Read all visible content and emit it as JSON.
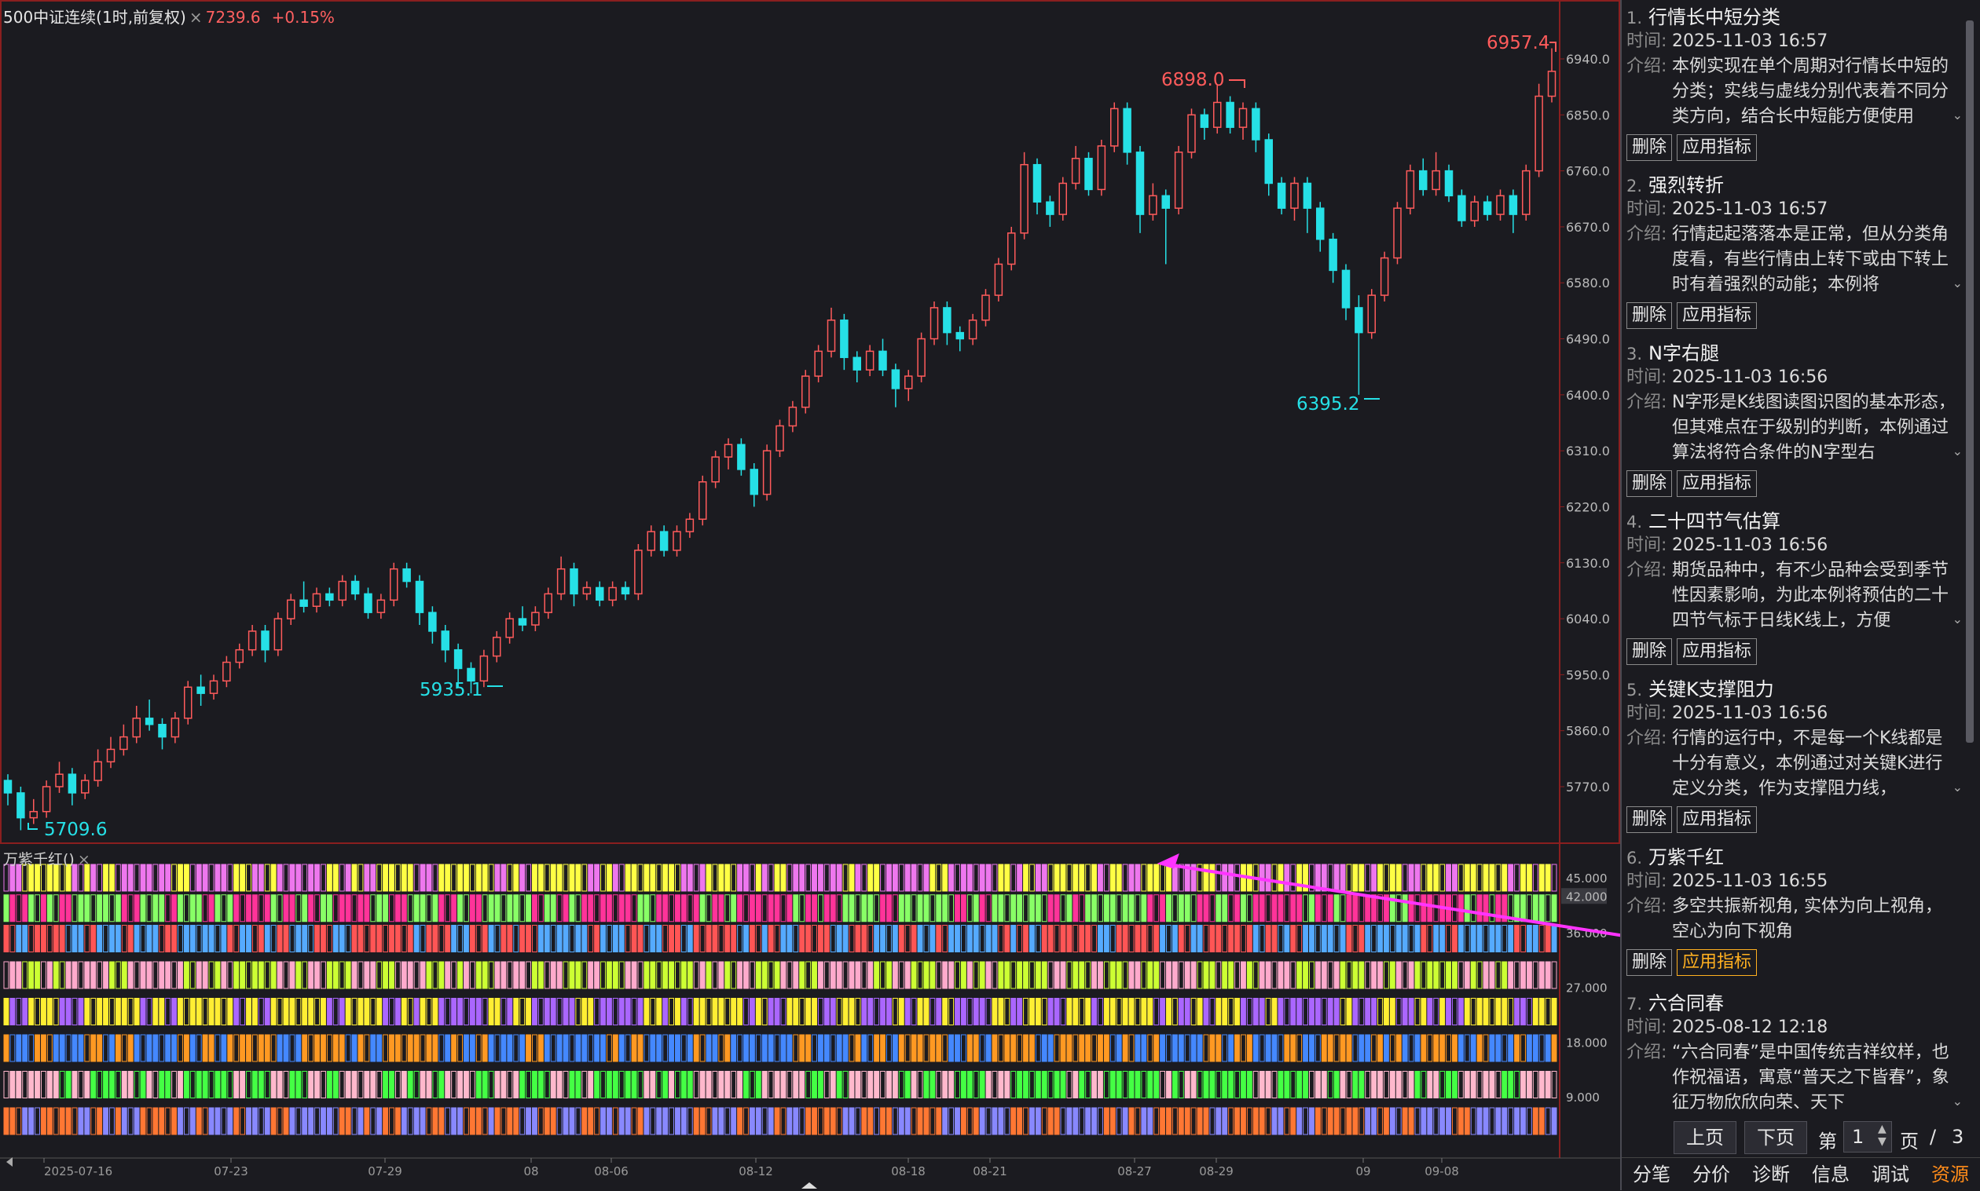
{
  "header": {
    "title": "500中证连续(1时,前复权)",
    "close_mark": "×",
    "price": "7239.6",
    "change": "+0.15%"
  },
  "indicator_header": {
    "name": "万紫千红()",
    "close_mark": "×"
  },
  "price_axis": [
    "6940.0",
    "6850.0",
    "6760.0",
    "6670.0",
    "6580.0",
    "6490.0",
    "6400.0",
    "6310.0",
    "6220.0",
    "6130.0",
    "6040.0",
    "5950.0",
    "5860.0",
    "5770.0"
  ],
  "indicator_axis": [
    "45.000",
    "42.000",
    "36.000",
    "27.000",
    "18.000",
    "9.000"
  ],
  "date_axis": [
    "2025-07-16",
    "07-23",
    "07-29",
    "08",
    "08-06",
    "08-12",
    "08-18",
    "08-21",
    "08-27",
    "08-29",
    "09",
    "09-08"
  ],
  "annotations": {
    "high": "6957.4",
    "mid_high": "6898.0",
    "low": "5709.6",
    "mid_low": "5935.1",
    "swing_low": "6395.2"
  },
  "candles": [
    [
      5780,
      5760,
      5790,
      5740
    ],
    [
      5760,
      5720,
      5770,
      5700
    ],
    [
      5720,
      5730,
      5750,
      5710
    ],
    [
      5730,
      5770,
      5780,
      5720
    ],
    [
      5770,
      5790,
      5810,
      5760
    ],
    [
      5790,
      5760,
      5800,
      5740
    ],
    [
      5760,
      5780,
      5790,
      5750
    ],
    [
      5780,
      5810,
      5830,
      5770
    ],
    [
      5810,
      5830,
      5850,
      5800
    ],
    [
      5830,
      5850,
      5870,
      5820
    ],
    [
      5850,
      5880,
      5900,
      5840
    ],
    [
      5880,
      5870,
      5910,
      5860
    ],
    [
      5870,
      5850,
      5880,
      5830
    ],
    [
      5850,
      5880,
      5890,
      5840
    ],
    [
      5880,
      5930,
      5940,
      5870
    ],
    [
      5930,
      5920,
      5950,
      5900
    ],
    [
      5920,
      5940,
      5950,
      5910
    ],
    [
      5940,
      5970,
      5980,
      5930
    ],
    [
      5970,
      5990,
      6000,
      5960
    ],
    [
      5990,
      6020,
      6030,
      5980
    ],
    [
      6020,
      5990,
      6030,
      5970
    ],
    [
      5990,
      6040,
      6050,
      5980
    ],
    [
      6040,
      6070,
      6080,
      6030
    ],
    [
      6070,
      6060,
      6100,
      6050
    ],
    [
      6060,
      6080,
      6090,
      6050
    ],
    [
      6080,
      6070,
      6090,
      6060
    ],
    [
      6070,
      6100,
      6110,
      6060
    ],
    [
      6100,
      6080,
      6110,
      6070
    ],
    [
      6080,
      6050,
      6090,
      6040
    ],
    [
      6050,
      6070,
      6080,
      6040
    ],
    [
      6070,
      6120,
      6130,
      6060
    ],
    [
      6120,
      6100,
      6130,
      6090
    ],
    [
      6100,
      6050,
      6110,
      6030
    ],
    [
      6050,
      6020,
      6060,
      6000
    ],
    [
      6020,
      5990,
      6030,
      5970
    ],
    [
      5990,
      5960,
      6000,
      5930
    ],
    [
      5960,
      5940,
      5970,
      5920
    ],
    [
      5940,
      5980,
      5990,
      5930
    ],
    [
      5980,
      6010,
      6020,
      5970
    ],
    [
      6010,
      6040,
      6050,
      6000
    ],
    [
      6040,
      6030,
      6060,
      6020
    ],
    [
      6030,
      6050,
      6060,
      6020
    ],
    [
      6050,
      6080,
      6090,
      6040
    ],
    [
      6080,
      6120,
      6140,
      6070
    ],
    [
      6120,
      6080,
      6130,
      6060
    ],
    [
      6080,
      6090,
      6100,
      6070
    ],
    [
      6090,
      6070,
      6100,
      6060
    ],
    [
      6070,
      6090,
      6100,
      6060
    ],
    [
      6090,
      6080,
      6100,
      6070
    ],
    [
      6080,
      6150,
      6160,
      6070
    ],
    [
      6150,
      6180,
      6190,
      6140
    ],
    [
      6180,
      6150,
      6190,
      6140
    ],
    [
      6150,
      6180,
      6190,
      6140
    ],
    [
      6180,
      6200,
      6210,
      6170
    ],
    [
      6200,
      6260,
      6270,
      6190
    ],
    [
      6260,
      6300,
      6310,
      6250
    ],
    [
      6300,
      6320,
      6330,
      6280
    ],
    [
      6320,
      6280,
      6330,
      6270
    ],
    [
      6280,
      6240,
      6290,
      6220
    ],
    [
      6240,
      6310,
      6320,
      6230
    ],
    [
      6310,
      6350,
      6360,
      6300
    ],
    [
      6350,
      6380,
      6390,
      6340
    ],
    [
      6380,
      6430,
      6440,
      6370
    ],
    [
      6430,
      6470,
      6480,
      6420
    ],
    [
      6470,
      6520,
      6540,
      6460
    ],
    [
      6520,
      6460,
      6530,
      6440
    ],
    [
      6460,
      6440,
      6470,
      6420
    ],
    [
      6440,
      6470,
      6480,
      6430
    ],
    [
      6470,
      6440,
      6490,
      6430
    ],
    [
      6440,
      6410,
      6450,
      6380
    ],
    [
      6410,
      6430,
      6440,
      6390
    ],
    [
      6430,
      6490,
      6500,
      6420
    ],
    [
      6490,
      6540,
      6550,
      6480
    ],
    [
      6540,
      6500,
      6550,
      6480
    ],
    [
      6500,
      6490,
      6510,
      6470
    ],
    [
      6490,
      6520,
      6530,
      6480
    ],
    [
      6520,
      6560,
      6570,
      6510
    ],
    [
      6560,
      6610,
      6620,
      6550
    ],
    [
      6610,
      6660,
      6670,
      6600
    ],
    [
      6660,
      6770,
      6790,
      6650
    ],
    [
      6770,
      6710,
      6780,
      6690
    ],
    [
      6710,
      6690,
      6720,
      6670
    ],
    [
      6690,
      6740,
      6750,
      6680
    ],
    [
      6740,
      6780,
      6800,
      6730
    ],
    [
      6780,
      6730,
      6790,
      6720
    ],
    [
      6730,
      6800,
      6810,
      6720
    ],
    [
      6800,
      6860,
      6870,
      6790
    ],
    [
      6860,
      6790,
      6870,
      6770
    ],
    [
      6790,
      6690,
      6800,
      6660
    ],
    [
      6690,
      6720,
      6740,
      6680
    ],
    [
      6720,
      6700,
      6730,
      6610
    ],
    [
      6700,
      6790,
      6800,
      6690
    ],
    [
      6790,
      6850,
      6860,
      6780
    ],
    [
      6850,
      6830,
      6860,
      6810
    ],
    [
      6830,
      6870,
      6898,
      6820
    ],
    [
      6870,
      6830,
      6880,
      6820
    ],
    [
      6830,
      6860,
      6870,
      6810
    ],
    [
      6860,
      6810,
      6870,
      6790
    ],
    [
      6810,
      6740,
      6820,
      6720
    ],
    [
      6740,
      6700,
      6750,
      6690
    ],
    [
      6700,
      6740,
      6750,
      6680
    ],
    [
      6740,
      6700,
      6750,
      6660
    ],
    [
      6700,
      6650,
      6710,
      6630
    ],
    [
      6650,
      6600,
      6660,
      6580
    ],
    [
      6600,
      6540,
      6610,
      6520
    ],
    [
      6540,
      6500,
      6560,
      6400
    ],
    [
      6500,
      6560,
      6570,
      6490
    ],
    [
      6560,
      6620,
      6630,
      6550
    ],
    [
      6620,
      6700,
      6710,
      6610
    ],
    [
      6700,
      6760,
      6770,
      6690
    ],
    [
      6760,
      6730,
      6780,
      6720
    ],
    [
      6730,
      6760,
      6790,
      6720
    ],
    [
      6760,
      6720,
      6770,
      6710
    ],
    [
      6720,
      6680,
      6730,
      6670
    ],
    [
      6680,
      6710,
      6720,
      6670
    ],
    [
      6710,
      6690,
      6720,
      6680
    ],
    [
      6690,
      6720,
      6730,
      6680
    ],
    [
      6720,
      6690,
      6730,
      6660
    ],
    [
      6690,
      6760,
      6770,
      6680
    ],
    [
      6760,
      6880,
      6900,
      6750
    ],
    [
      6880,
      6920,
      6957,
      6870
    ]
  ],
  "indicator_rows": [
    {
      "value": 45,
      "colors": [
        "#ee77ee",
        "#ffff44"
      ]
    },
    {
      "value": 40,
      "colors": [
        "#ff3399",
        "#88ff66"
      ]
    },
    {
      "value": 35,
      "colors": [
        "#ff5555",
        "#55aaff"
      ]
    },
    {
      "value": 29,
      "colors": [
        "#ffaacc",
        "#ccff33"
      ]
    },
    {
      "value": 23,
      "colors": [
        "#aa66ff",
        "#ffee33"
      ]
    },
    {
      "value": 17,
      "colors": [
        "#ff9922",
        "#4488ff"
      ]
    },
    {
      "value": 11,
      "colors": [
        "#ffb8cc",
        "#44ff44"
      ]
    },
    {
      "value": 5,
      "colors": [
        "#ff7733",
        "#8888ff"
      ]
    }
  ],
  "panel": {
    "time_label": "时间:",
    "desc_label": "介绍:",
    "delete_label": "删除",
    "apply_label": "应用指标",
    "items": [
      {
        "num": "1.",
        "title": "行情长中短分类",
        "time": "2025-11-03 16:57",
        "desc": "本例实现在单个周期对行情长中短的分类；实线与虚线分别代表着不同分类方向，结合长中短能方便使用"
      },
      {
        "num": "2.",
        "title": "强烈转折",
        "time": "2025-11-03 16:57",
        "desc": "行情起起落落本是正常，但从分类角度看，有些行情由上转下或由下转上时有着强烈的动能；本例将"
      },
      {
        "num": "3.",
        "title": "N字右腿",
        "time": "2025-11-03 16:56",
        "desc": "N字形是K线图读图识图的基本形态，但其难点在于级别的判断，本例通过算法将符合条件的N字型右"
      },
      {
        "num": "4.",
        "title": "二十四节气估算",
        "time": "2025-11-03 16:56",
        "desc": "期货品种中，有不少品种会受到季节性因素影响，为此本例将预估的二十四节气标于日线K线上，方便"
      },
      {
        "num": "5.",
        "title": "关键K支撑阻力",
        "time": "2025-11-03 16:56",
        "desc": "行情的运行中，不是每一个K线都是十分有意义，本例通过对关键K进行定义分类，作为支撑阻力线，"
      },
      {
        "num": "6.",
        "title": "万紫千红",
        "time": "2025-11-03 16:55",
        "desc": "多空共振新视角, 实体为向上视角，空心为向下视角"
      },
      {
        "num": "7.",
        "title": "六合同春",
        "time": "2025-08-12 12:18",
        "desc": "“六合同春”是中国传统吉祥纹样，也作祝福语，寓意“普天之下皆春”，象征万物欣欣向荣、天下"
      }
    ]
  },
  "pager": {
    "prev": "上页",
    "next": "下页",
    "page_prefix": "第",
    "page": "1",
    "page_suffix": "页",
    "sep": "/",
    "total": "3"
  },
  "tabs": [
    "分笔",
    "分价",
    "诊断",
    "信息",
    "调试",
    "资源"
  ]
}
